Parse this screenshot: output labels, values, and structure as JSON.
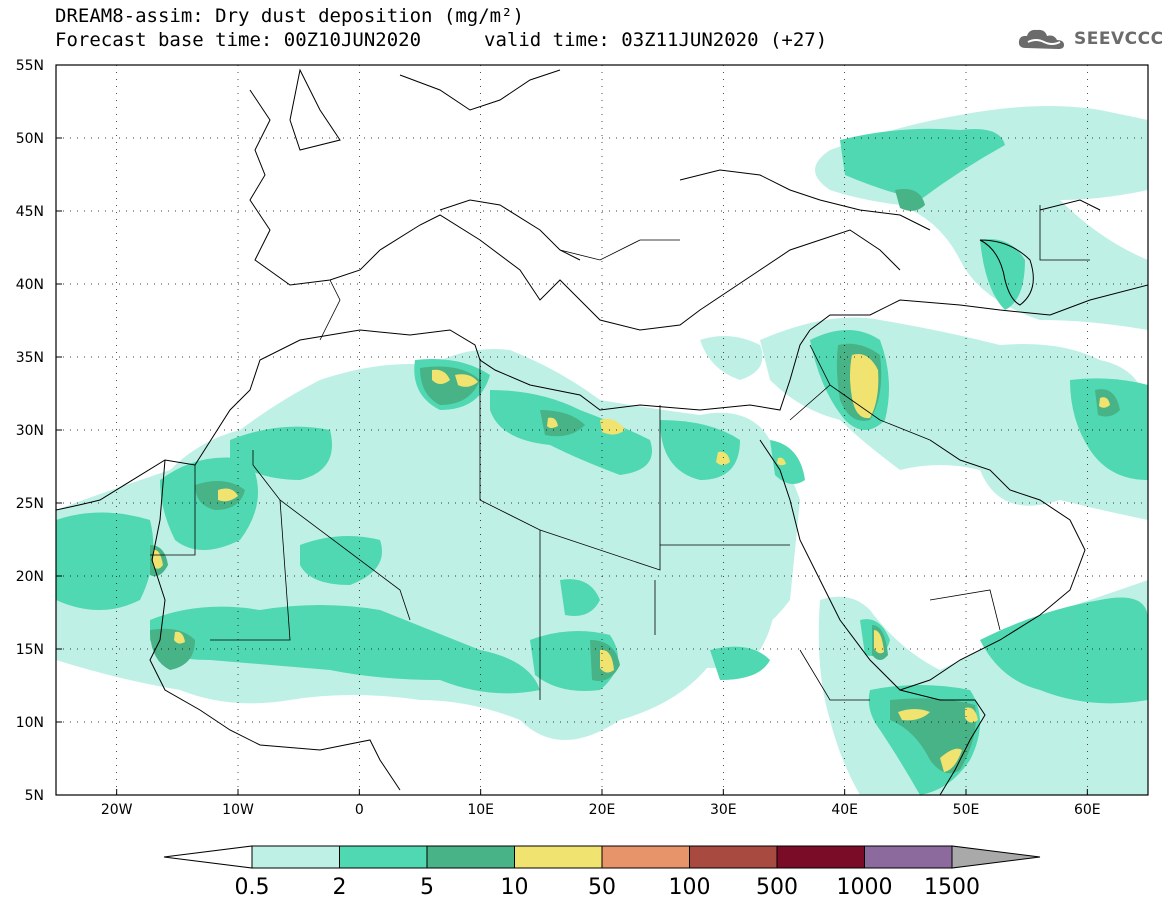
{
  "title": {
    "line1": "DREAM8-assim: Dry dust deposition (mg/m²)",
    "line2_base": "Forecast base time: 00Z10JUN2020",
    "line2_valid": "valid time: 03Z11JUN2020 (+27)"
  },
  "logo": {
    "text": "SEEVCCC",
    "icon": "cloud-logo-icon"
  },
  "map": {
    "lat_labels": [
      "55N",
      "50N",
      "45N",
      "40N",
      "35N",
      "30N",
      "25N",
      "20N",
      "15N",
      "10N",
      "5N"
    ],
    "lon_labels": [
      "20W",
      "10W",
      "0",
      "10E",
      "20E",
      "30E",
      "40E",
      "50E",
      "60E"
    ],
    "lat_values": [
      55,
      50,
      45,
      40,
      35,
      30,
      25,
      20,
      15,
      10,
      5
    ],
    "lon_values": [
      -20,
      -10,
      0,
      10,
      20,
      30,
      40,
      50,
      60
    ],
    "lon_range": [
      -25,
      65
    ],
    "lat_range": [
      5,
      55
    ]
  },
  "legend": {
    "labels": [
      "0.5",
      "2",
      "5",
      "10",
      "50",
      "100",
      "500",
      "1000",
      "1500"
    ],
    "colors": [
      "#bff0e6",
      "#4fd8b1",
      "#47b386",
      "#f0e36f",
      "#e8946b",
      "#a84a3f",
      "#7a0c28",
      "#8d6a9e"
    ],
    "low_color": "#ffffff",
    "high_color": "#a9a9a9"
  }
}
